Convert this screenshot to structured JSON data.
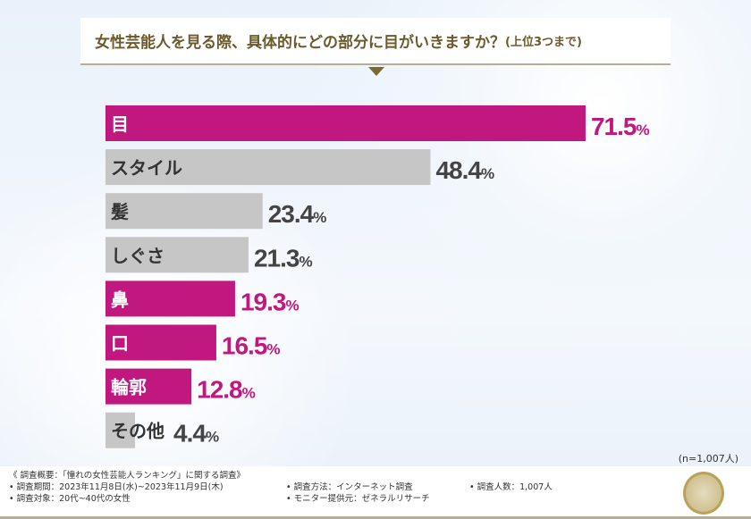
{
  "title": {
    "main": "女性芸能人を見る際、具体的にどの部分に目がいきますか？",
    "sub": "(上位3つまで)"
  },
  "chart_data": {
    "type": "bar",
    "orientation": "horizontal",
    "categories": [
      "目",
      "スタイル",
      "髪",
      "しぐさ",
      "鼻",
      "口",
      "輪郭",
      "その他"
    ],
    "values": [
      71.5,
      48.4,
      23.4,
      21.3,
      19.3,
      16.5,
      12.8,
      4.4
    ],
    "unit": "%",
    "highlighted": [
      true,
      false,
      false,
      false,
      true,
      true,
      true,
      false
    ],
    "colors": {
      "highlight": "#c0187f",
      "normal": "#c6c6c6",
      "highlight_label": "#c0187f",
      "normal_label": "#444444"
    },
    "xlim": [
      0,
      100
    ],
    "grid": false
  },
  "sample": "(n=1,007人)",
  "footer": {
    "heading": "《 調査概要：「憧れの女性芸能人ランキング」に関する調査》",
    "period": "• 調査期間：2023年11月8日(水)~2023年11月9日(木)",
    "method": "• 調査方法：インターネット調査",
    "count": "• 調査人数：1,007人",
    "target": "• 調査対象：20代~40代の女性",
    "provider": "• モニター提供元：ゼネラルリサーチ"
  }
}
